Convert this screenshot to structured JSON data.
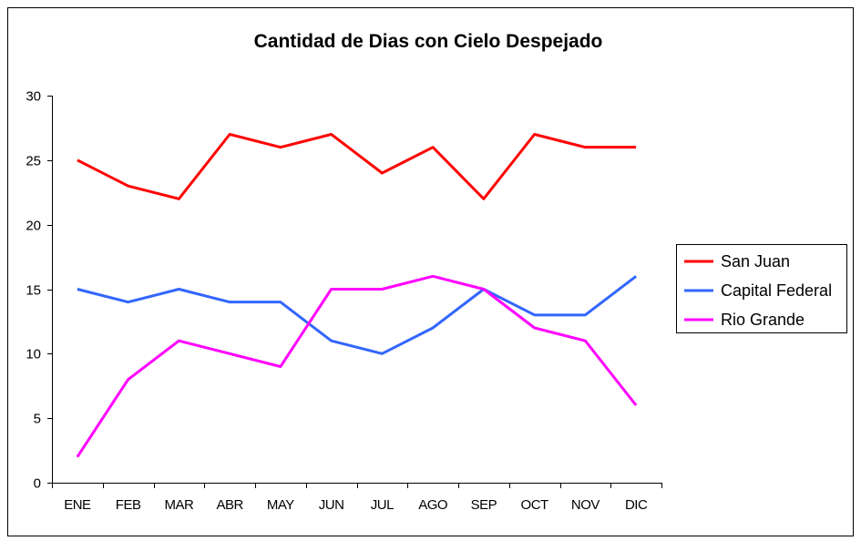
{
  "chart_data": {
    "type": "line",
    "title": "Cantidad de Dias con Cielo Despejado",
    "xlabel": "",
    "ylabel": "",
    "ylim": [
      0,
      30
    ],
    "yticks": [
      0,
      5,
      10,
      15,
      20,
      25,
      30
    ],
    "grid": false,
    "legend_position": "right",
    "categories": [
      "ENE",
      "FEB",
      "MAR",
      "ABR",
      "MAY",
      "JUN",
      "JUL",
      "AGO",
      "SEP",
      "OCT",
      "NOV",
      "DIC"
    ],
    "series": [
      {
        "name": "San Juan",
        "color": "#ff0000",
        "values": [
          25,
          23,
          22,
          27,
          26,
          27,
          24,
          26,
          22,
          27,
          26,
          26
        ]
      },
      {
        "name": "Capital Federal",
        "color": "#3366ff",
        "values": [
          15,
          14,
          15,
          14,
          14,
          11,
          10,
          12,
          15,
          13,
          13,
          16
        ]
      },
      {
        "name": "Rio Grande",
        "color": "#ff00ff",
        "values": [
          2,
          8,
          11,
          10,
          9,
          15,
          15,
          16,
          15,
          12,
          11,
          6
        ]
      }
    ]
  }
}
